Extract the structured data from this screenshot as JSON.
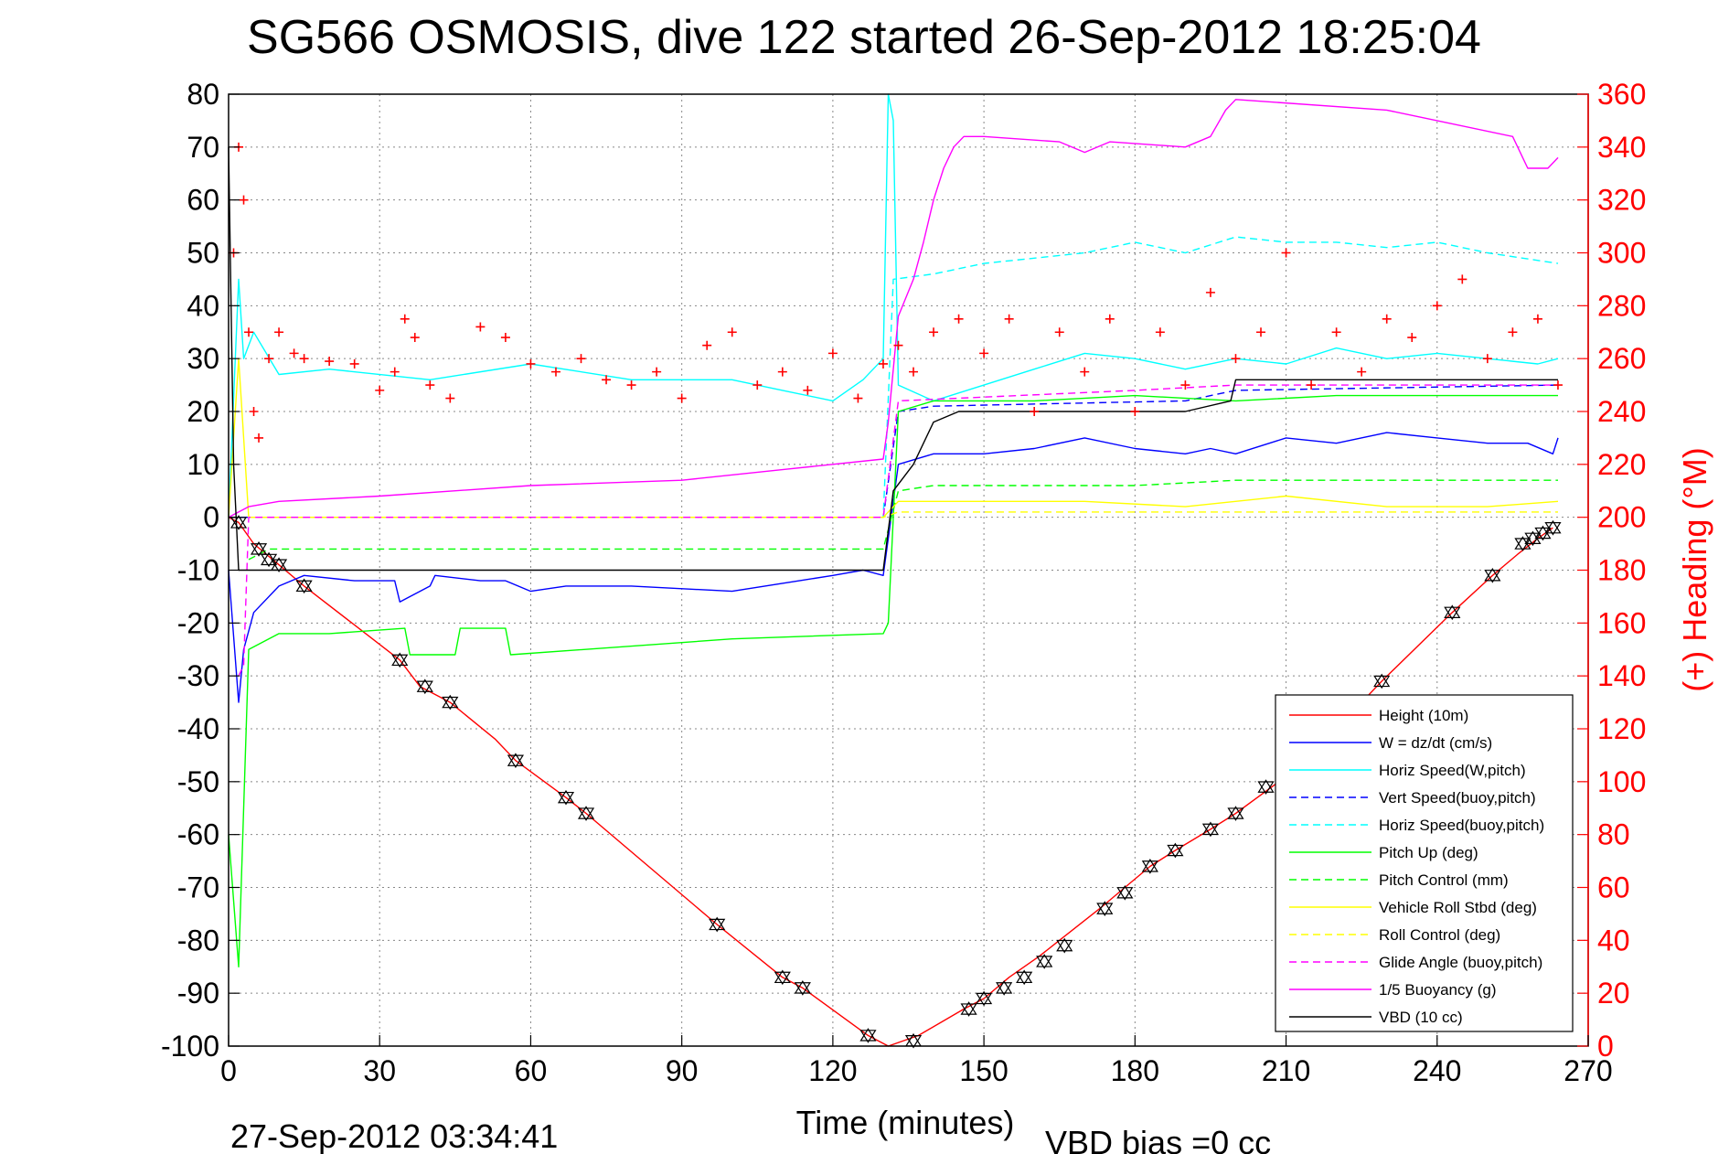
{
  "title": "SG566 OSMOSIS, dive 122 started 26-Sep-2012 18:25:04",
  "footer_left": "27-Sep-2012 03:34:41",
  "footer_right": "VBD bias =0 cc",
  "chart_data": {
    "type": "line",
    "title": "SG566 OSMOSIS, dive 122 started 26-Sep-2012 18:25:04",
    "xlabel": "Time (minutes)",
    "ylabel_right": "(+) Heading (°M)",
    "xlim": [
      0,
      270
    ],
    "ylim_left": [
      -100,
      80
    ],
    "ylim_right": [
      0,
      360
    ],
    "x_ticks": [
      0,
      30,
      60,
      90,
      120,
      150,
      180,
      210,
      240,
      270
    ],
    "y_ticks_left": [
      80,
      70,
      60,
      50,
      40,
      30,
      20,
      10,
      0,
      -10,
      -20,
      -30,
      -40,
      -50,
      -60,
      -70,
      -80,
      -90,
      -100
    ],
    "y_ticks_right": [
      360,
      340,
      320,
      300,
      280,
      260,
      240,
      220,
      200,
      180,
      160,
      140,
      120,
      100,
      80,
      60,
      40,
      20,
      0
    ],
    "grid": true,
    "legend_position": "bottom-right",
    "colors": {
      "red": "#ff0000",
      "blue": "#0000ff",
      "cyan": "#00ffff",
      "green": "#00ff00",
      "yellow": "#ffff00",
      "magenta": "#ff00ff",
      "black": "#000000"
    },
    "series": [
      {
        "name": "Height (10m)",
        "color": "#ff0000",
        "style": "solid",
        "axis": "left",
        "x": [
          0,
          2,
          5,
          10,
          15,
          34,
          38,
          44,
          53,
          57,
          67,
          71,
          97,
          110,
          114,
          127,
          131,
          137,
          146,
          150,
          155,
          161,
          165,
          173,
          178,
          183,
          188,
          195,
          200,
          210,
          220,
          229,
          243,
          251,
          256,
          260,
          263
        ],
        "y": [
          0,
          -1,
          -5,
          -9,
          -13,
          -27,
          -32,
          -35,
          -42,
          -46,
          -53,
          -56,
          -77,
          -87,
          -89,
          -98,
          -100,
          -98,
          -93,
          -91,
          -87,
          -83,
          -80,
          -74,
          -70,
          -66,
          -63,
          -59,
          -56,
          -49,
          -40,
          -31,
          -18,
          -11,
          -7,
          -4,
          -2
        ]
      },
      {
        "name": "W = dz/dt (cm/s)",
        "color": "#0000ff",
        "style": "solid",
        "axis": "left",
        "x": [
          0,
          2,
          3,
          5,
          10,
          15,
          25,
          33,
          34,
          40,
          41,
          50,
          55,
          60,
          67,
          80,
          100,
          120,
          126,
          130,
          133,
          140,
          150,
          160,
          170,
          180,
          190,
          195,
          200,
          210,
          220,
          230,
          240,
          250,
          258,
          263,
          264
        ],
        "y": [
          -10,
          -35,
          -25,
          -18,
          -13,
          -11,
          -12,
          -12,
          -16,
          -13,
          -11,
          -12,
          -12,
          -14,
          -13,
          -13,
          -14,
          -11,
          -10,
          -11,
          10,
          12,
          12,
          13,
          15,
          13,
          12,
          13,
          12,
          15,
          14,
          16,
          15,
          14,
          14,
          12,
          15
        ]
      },
      {
        "name": "Horiz Speed(W,pitch)",
        "color": "#00ffff",
        "style": "solid",
        "axis": "left",
        "x": [
          0,
          2,
          3,
          5,
          10,
          20,
          40,
          60,
          80,
          100,
          110,
          120,
          126,
          130,
          131,
          132,
          133,
          140,
          150,
          160,
          170,
          180,
          190,
          200,
          210,
          220,
          230,
          240,
          250,
          260,
          264
        ],
        "y": [
          0,
          45,
          30,
          35,
          27,
          28,
          26,
          29,
          26,
          26,
          24,
          22,
          26,
          30,
          80,
          75,
          25,
          22,
          25,
          28,
          31,
          30,
          28,
          30,
          29,
          32,
          30,
          31,
          30,
          29,
          30
        ]
      },
      {
        "name": "Vert Speed(buoy,pitch)",
        "color": "#0000ff",
        "style": "dashed",
        "axis": "left",
        "x": [
          0,
          4,
          130,
          133,
          140,
          190,
          200,
          264
        ],
        "y": [
          0,
          0,
          0,
          20,
          21,
          22,
          24,
          25
        ]
      },
      {
        "name": "Horiz Speed(buoy,pitch)",
        "color": "#00ffff",
        "style": "dashed",
        "axis": "left",
        "x": [
          4,
          130,
          132,
          140,
          150,
          160,
          170,
          180,
          190,
          200,
          210,
          220,
          230,
          240,
          250,
          264
        ],
        "y": [
          0,
          0,
          45,
          46,
          48,
          49,
          50,
          52,
          50,
          53,
          52,
          52,
          51,
          52,
          50,
          48
        ]
      },
      {
        "name": "Pitch Up (deg)",
        "color": "#00ff00",
        "style": "solid",
        "axis": "left",
        "x": [
          0,
          2,
          4,
          10,
          20,
          35,
          36,
          45,
          46,
          55,
          56,
          100,
          130,
          131,
          133,
          140,
          160,
          180,
          200,
          220,
          240,
          264
        ],
        "y": [
          -60,
          -85,
          -25,
          -22,
          -22,
          -21,
          -26,
          -26,
          -21,
          -21,
          -26,
          -23,
          -22,
          -20,
          20,
          22,
          22,
          23,
          22,
          23,
          23,
          23
        ]
      },
      {
        "name": "Pitch Control (mm)",
        "color": "#00ff00",
        "style": "dashed",
        "axis": "left",
        "x": [
          4,
          8,
          20,
          35,
          45,
          55,
          100,
          130,
          133,
          140,
          160,
          180,
          200,
          220,
          240,
          264
        ],
        "y": [
          -8,
          -6,
          -6,
          -6,
          -6,
          -6,
          -6,
          -6,
          5,
          6,
          6,
          6,
          7,
          7,
          7,
          7
        ]
      },
      {
        "name": "Vehicle Roll Stbd (deg)",
        "color": "#ffff00",
        "style": "solid",
        "axis": "left",
        "x": [
          0,
          2,
          4,
          10,
          20,
          40,
          60,
          80,
          100,
          120,
          130,
          133,
          150,
          170,
          190,
          210,
          230,
          250,
          264
        ],
        "y": [
          0,
          30,
          0,
          0,
          0,
          0,
          0,
          0,
          0,
          0,
          0,
          3,
          3,
          3,
          2,
          4,
          2,
          2,
          3
        ]
      },
      {
        "name": "Roll Control (deg)",
        "color": "#ffff00",
        "style": "dashed",
        "axis": "left",
        "x": [
          4,
          130,
          133,
          264
        ],
        "y": [
          0,
          0,
          1,
          1
        ]
      },
      {
        "name": "Glide Angle (buoy,pitch)",
        "color": "#ff00ff",
        "style": "dashed",
        "axis": "left",
        "x": [
          2,
          3,
          4,
          130,
          133,
          180,
          200,
          264
        ],
        "y": [
          -30,
          -28,
          0,
          0,
          22,
          24,
          25,
          25
        ]
      },
      {
        "name": "1/5 Buoyancy (g)",
        "color": "#ff00ff",
        "style": "solid",
        "axis": "left",
        "x": [
          0,
          2,
          4,
          10,
          30,
          60,
          90,
          110,
          130,
          131,
          133,
          136,
          138,
          140,
          142,
          144,
          146,
          150,
          165,
          170,
          175,
          190,
          195,
          198,
          200,
          230,
          255,
          258,
          262,
          264
        ],
        "y": [
          0,
          1,
          2,
          3,
          4,
          6,
          7,
          9,
          11,
          18,
          38,
          45,
          52,
          60,
          66,
          70,
          72,
          72,
          71,
          69,
          71,
          70,
          72,
          77,
          79,
          77,
          72,
          66,
          66,
          68
        ]
      },
      {
        "name": "VBD (10 cc)",
        "color": "#000000",
        "style": "solid",
        "axis": "left",
        "x": [
          0,
          1,
          2,
          5,
          15,
          60,
          120,
          130,
          132,
          136,
          140,
          145,
          150,
          160,
          190,
          199,
          200,
          264
        ],
        "y": [
          70,
          10,
          -10,
          -10,
          -10,
          -10,
          -10,
          -10,
          5,
          10,
          18,
          20,
          20,
          20,
          20,
          22,
          26,
          26
        ]
      },
      {
        "name": "(+) Heading",
        "color": "#ff0000",
        "style": "markers",
        "axis": "right",
        "x": [
          1,
          2,
          3,
          4,
          5,
          6,
          8,
          10,
          13,
          15,
          20,
          25,
          30,
          33,
          35,
          37,
          40,
          44,
          50,
          55,
          60,
          65,
          70,
          75,
          80,
          85,
          90,
          95,
          100,
          105,
          110,
          115,
          120,
          125,
          130,
          133,
          136,
          140,
          145,
          150,
          155,
          160,
          165,
          170,
          175,
          180,
          185,
          190,
          195,
          200,
          205,
          210,
          215,
          220,
          225,
          230,
          235,
          240,
          245,
          250,
          255,
          260,
          264
        ],
        "y": [
          300,
          340,
          320,
          270,
          240,
          230,
          260,
          270,
          262,
          260,
          259,
          258,
          248,
          255,
          275,
          268,
          250,
          245,
          272,
          268,
          258,
          255,
          260,
          252,
          250,
          255,
          245,
          265,
          270,
          250,
          255,
          248,
          262,
          245,
          258,
          265,
          255,
          270,
          275,
          262,
          275,
          240,
          270,
          255,
          275,
          240,
          270,
          250,
          285,
          260,
          270,
          300,
          250,
          270,
          255,
          275,
          268,
          280,
          290,
          260,
          270,
          275,
          250
        ]
      }
    ],
    "depth_markers": {
      "x": [
        2,
        6,
        8,
        10,
        15,
        34,
        39,
        44,
        57,
        67,
        71,
        97,
        110,
        114,
        127,
        136,
        147,
        150,
        154,
        158,
        162,
        166,
        174,
        178,
        183,
        188,
        195,
        200,
        206,
        229,
        243,
        251,
        257,
        259,
        261,
        263
      ],
      "y": [
        -1,
        -6,
        -8,
        -9,
        -13,
        -27,
        -32,
        -35,
        -46,
        -53,
        -56,
        -77,
        -87,
        -89,
        -98,
        -99,
        -93,
        -91,
        -89,
        -87,
        -84,
        -81,
        -74,
        -71,
        -66,
        -63,
        -59,
        -56,
        -51,
        -31,
        -18,
        -11,
        -5,
        -4,
        -3,
        -2
      ]
    }
  }
}
